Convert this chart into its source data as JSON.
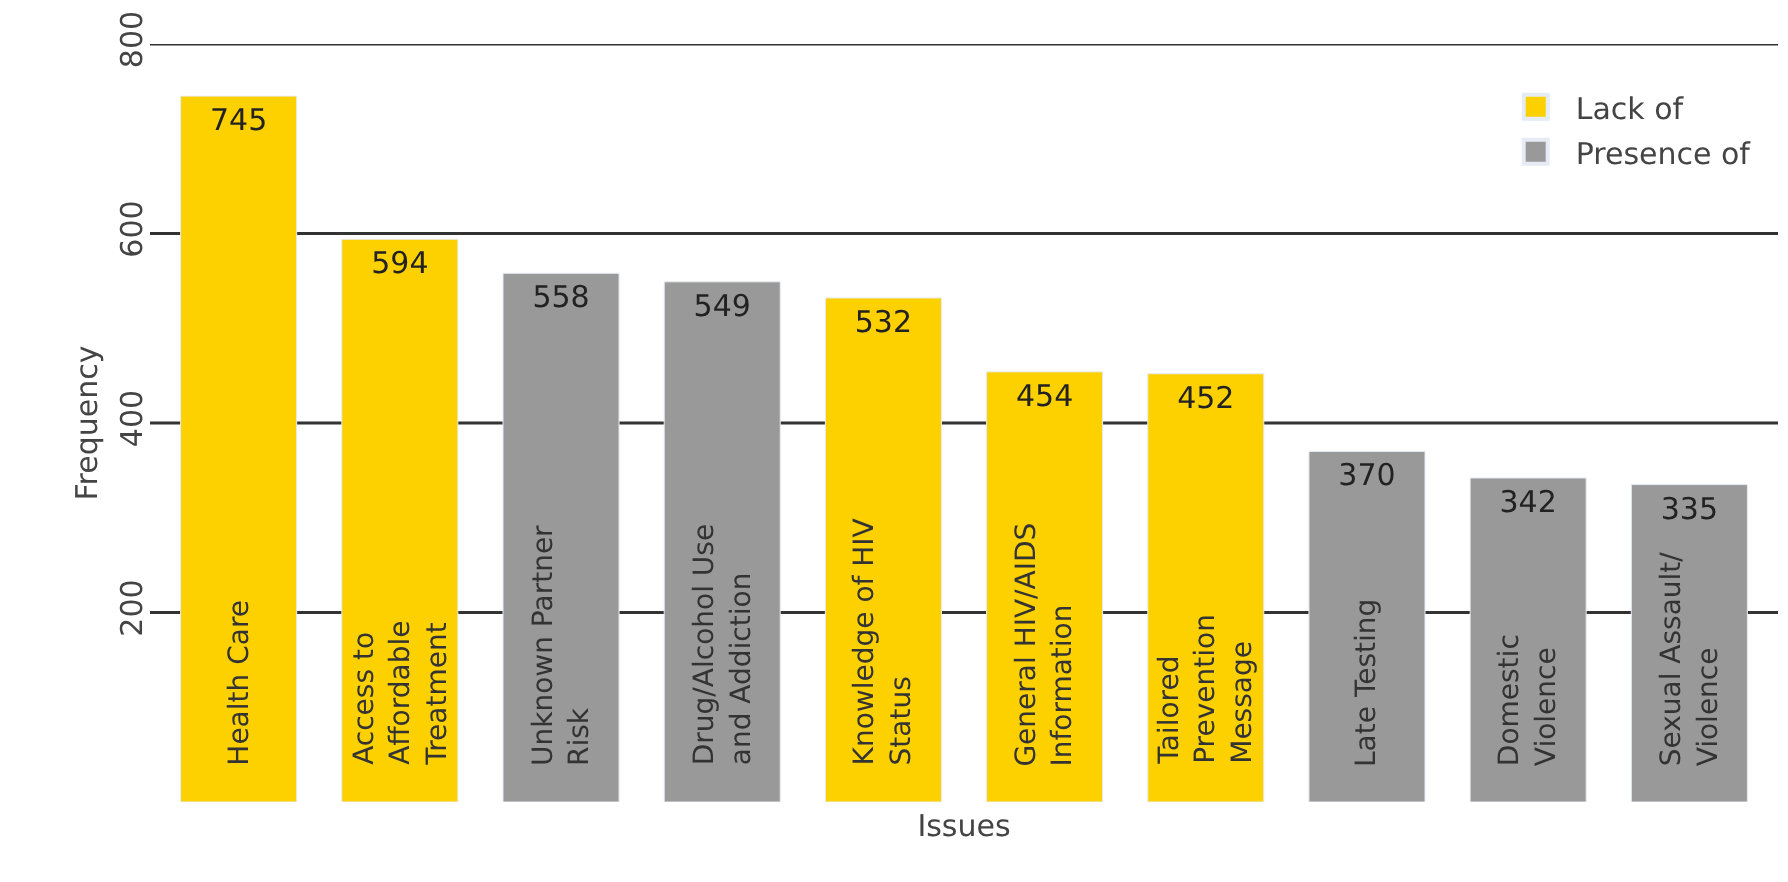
{
  "chart_data": {
    "type": "bar",
    "xlabel": "Issues",
    "ylabel": "Frequency",
    "categories": [
      "Health Care",
      "Access to Affordable Treatment",
      "Unknown Partner Risk",
      "Drug/Alcohol Use and Addiction",
      "Knowledge of HIV Status",
      "General HIV/AIDS Information",
      "Tailored Prevention Message",
      "Late Testing",
      "Domestic Violence",
      "Sexual Assault/ Violence"
    ],
    "series": [
      {
        "name": "Lack of",
        "color": "#fdd000",
        "values": [
          745,
          594,
          null,
          null,
          532,
          454,
          452,
          null,
          null,
          null
        ]
      },
      {
        "name": "Presence of",
        "color": "#999999",
        "values": [
          null,
          null,
          558,
          549,
          null,
          null,
          null,
          370,
          342,
          335
        ]
      }
    ],
    "ylim": [
      0,
      800
    ],
    "yticks": [
      200,
      400,
      600,
      800
    ],
    "grid": "y",
    "legend": "top right",
    "data_labels": true
  }
}
